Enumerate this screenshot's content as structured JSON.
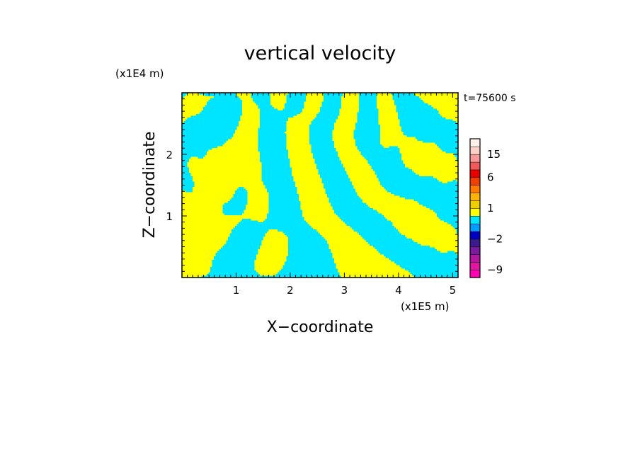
{
  "chart_data": {
    "type": "heatmap",
    "title": "vertical velocity",
    "xlabel": "X−coordinate",
    "ylabel": "Z−coordinate",
    "x_unit": "(x1E5 m)",
    "y_unit": "(x1E4 m)",
    "time_label": "t=75600 s",
    "xlim": [
      0.0,
      5.1
    ],
    "ylim": [
      0.0,
      3.0
    ],
    "x_ticks": [
      1,
      2,
      3,
      4,
      5
    ],
    "y_ticks": [
      1,
      2
    ],
    "field_colors": {
      "positive": "#ffff00",
      "negative": "#00e5ff"
    },
    "colorbar": {
      "bounds": [
        -12,
        -9,
        -6,
        -4,
        -3,
        -2,
        -1,
        -0.5,
        0.5,
        1,
        2,
        3,
        4,
        6,
        9,
        12,
        15,
        18,
        22
      ],
      "colors": [
        "#ff00b4",
        "#e0169e",
        "#b0189e",
        "#7a1a9c",
        "#3a1c8c",
        "#0000c0",
        "#009cff",
        "#00e5ff",
        "#ffff00",
        "#f0d000",
        "#ffb400",
        "#ff7a00",
        "#f04000",
        "#e60000",
        "#f05a5a",
        "#f89a9a",
        "#fcd0c8",
        "#fff0ea"
      ],
      "tick_labels": [
        {
          "value": 15,
          "text": "15"
        },
        {
          "value": 6,
          "text": "6"
        },
        {
          "value": 1,
          "text": "1"
        },
        {
          "value": -2,
          "text": "−2"
        },
        {
          "value": -9,
          "text": "−9"
        }
      ]
    }
  }
}
